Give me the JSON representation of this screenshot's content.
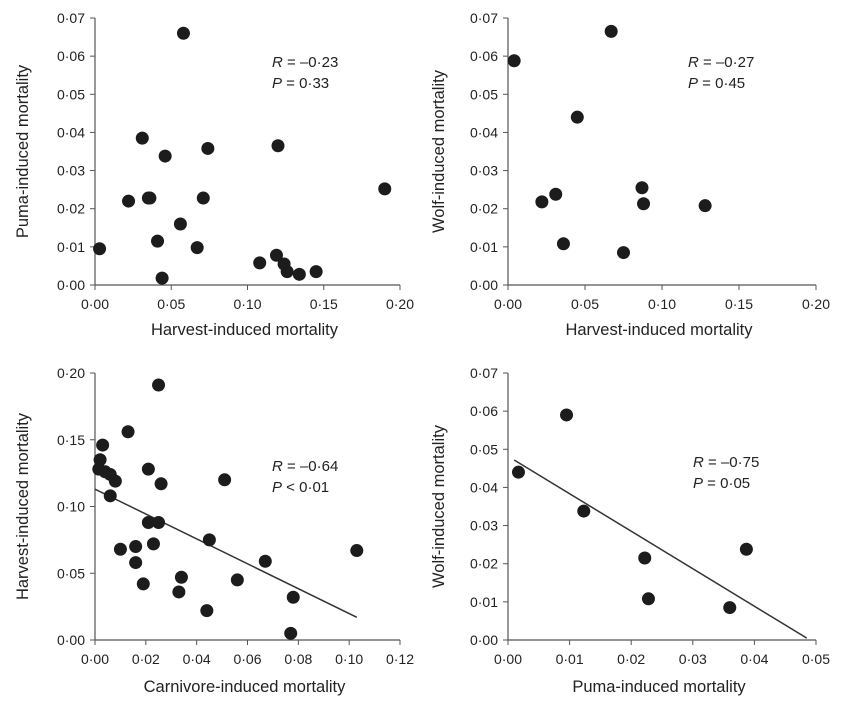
{
  "chart_data": [
    {
      "type": "scatter",
      "xlabel": "Harvest-induced mortality",
      "ylabel": "Puma-induced mortality",
      "xlim": [
        0,
        0.2
      ],
      "ylim": [
        0,
        0.07
      ],
      "x_ticks": [
        "0·00",
        "0·05",
        "0·10",
        "0·15",
        "0·20"
      ],
      "y_ticks": [
        "0·00",
        "0·01",
        "0·02",
        "0·03",
        "0·04",
        "0·05",
        "0·06",
        "0·07"
      ],
      "r_label": "R",
      "r_value": " = –0·23",
      "p_label": "P",
      "p_value": " = 0·33",
      "fit_line": null,
      "points": [
        {
          "x": 0.003,
          "y": 0.0095
        },
        {
          "x": 0.022,
          "y": 0.022
        },
        {
          "x": 0.031,
          "y": 0.0385
        },
        {
          "x": 0.035,
          "y": 0.0228
        },
        {
          "x": 0.036,
          "y": 0.0228
        },
        {
          "x": 0.041,
          "y": 0.0115
        },
        {
          "x": 0.044,
          "y": 0.0018
        },
        {
          "x": 0.046,
          "y": 0.0338
        },
        {
          "x": 0.056,
          "y": 0.016
        },
        {
          "x": 0.058,
          "y": 0.066
        },
        {
          "x": 0.067,
          "y": 0.0098
        },
        {
          "x": 0.071,
          "y": 0.0228
        },
        {
          "x": 0.074,
          "y": 0.0358
        },
        {
          "x": 0.108,
          "y": 0.0058
        },
        {
          "x": 0.119,
          "y": 0.0078
        },
        {
          "x": 0.12,
          "y": 0.0365
        },
        {
          "x": 0.124,
          "y": 0.0055
        },
        {
          "x": 0.126,
          "y": 0.0035
        },
        {
          "x": 0.134,
          "y": 0.0028
        },
        {
          "x": 0.145,
          "y": 0.0035
        },
        {
          "x": 0.19,
          "y": 0.0252
        }
      ]
    },
    {
      "type": "scatter",
      "xlabel": "Harvest-induced mortality",
      "ylabel": "Wolf-induced mortality",
      "xlim": [
        0,
        0.2
      ],
      "ylim": [
        0,
        0.07
      ],
      "x_ticks": [
        "0·00",
        "0·05",
        "0·10",
        "0·15",
        "0·20"
      ],
      "y_ticks": [
        "0·00",
        "0·01",
        "0·02",
        "0·03",
        "0·04",
        "0·05",
        "0·06",
        "0·07"
      ],
      "r_label": "R",
      "r_value": " = –0·27",
      "p_label": "P",
      "p_value": " = 0·45",
      "fit_line": null,
      "points": [
        {
          "x": 0.004,
          "y": 0.0588
        },
        {
          "x": 0.022,
          "y": 0.0218
        },
        {
          "x": 0.031,
          "y": 0.0238
        },
        {
          "x": 0.036,
          "y": 0.0108
        },
        {
          "x": 0.045,
          "y": 0.044
        },
        {
          "x": 0.067,
          "y": 0.0665
        },
        {
          "x": 0.075,
          "y": 0.0085
        },
        {
          "x": 0.087,
          "y": 0.0255
        },
        {
          "x": 0.088,
          "y": 0.0213
        },
        {
          "x": 0.128,
          "y": 0.0208
        }
      ]
    },
    {
      "type": "scatter",
      "xlabel": "Carnivore-induced mortality",
      "ylabel": "Harvest-induced mortality",
      "xlim": [
        0,
        0.12
      ],
      "ylim": [
        0,
        0.2
      ],
      "x_ticks": [
        "0·00",
        "0·02",
        "0·04",
        "0·06",
        "0·08",
        "0·10",
        "0·12"
      ],
      "y_ticks": [
        "0·00",
        "0·05",
        "0·10",
        "0·15",
        "0·20"
      ],
      "r_label": "R",
      "r_value": " = –0·64",
      "p_label": "P",
      "p_value": " < 0·01",
      "fit_line": {
        "x0": 0.0,
        "y0": 0.113,
        "x1": 0.103,
        "y1": 0.017
      },
      "points": [
        {
          "x": 0.0015,
          "y": 0.128
        },
        {
          "x": 0.002,
          "y": 0.135
        },
        {
          "x": 0.003,
          "y": 0.146
        },
        {
          "x": 0.004,
          "y": 0.126
        },
        {
          "x": 0.006,
          "y": 0.124
        },
        {
          "x": 0.006,
          "y": 0.108
        },
        {
          "x": 0.008,
          "y": 0.119
        },
        {
          "x": 0.01,
          "y": 0.068
        },
        {
          "x": 0.013,
          "y": 0.156
        },
        {
          "x": 0.016,
          "y": 0.07
        },
        {
          "x": 0.016,
          "y": 0.058
        },
        {
          "x": 0.019,
          "y": 0.042
        },
        {
          "x": 0.021,
          "y": 0.128
        },
        {
          "x": 0.021,
          "y": 0.088
        },
        {
          "x": 0.023,
          "y": 0.072
        },
        {
          "x": 0.025,
          "y": 0.088
        },
        {
          "x": 0.025,
          "y": 0.191
        },
        {
          "x": 0.026,
          "y": 0.117
        },
        {
          "x": 0.033,
          "y": 0.036
        },
        {
          "x": 0.034,
          "y": 0.047
        },
        {
          "x": 0.044,
          "y": 0.022
        },
        {
          "x": 0.045,
          "y": 0.075
        },
        {
          "x": 0.051,
          "y": 0.12
        },
        {
          "x": 0.056,
          "y": 0.045
        },
        {
          "x": 0.067,
          "y": 0.059
        },
        {
          "x": 0.077,
          "y": 0.005
        },
        {
          "x": 0.078,
          "y": 0.032
        },
        {
          "x": 0.103,
          "y": 0.067
        }
      ]
    },
    {
      "type": "scatter",
      "xlabel": "Puma-induced mortality",
      "ylabel": "Wolf-induced mortality",
      "xlim": [
        0,
        0.05
      ],
      "ylim": [
        0,
        0.07
      ],
      "x_ticks": [
        "0·00",
        "0·01",
        "0·02",
        "0·03",
        "0·04",
        "0·05"
      ],
      "y_ticks": [
        "0·00",
        "0·01",
        "0·02",
        "0·03",
        "0·04",
        "0·05",
        "0·06",
        "0·07"
      ],
      "r_label": "R",
      "r_value": " = –0·75",
      "p_label": "P",
      "p_value": " = 0·05",
      "fit_line": {
        "x0": 0.001,
        "y0": 0.0472,
        "x1": 0.0485,
        "y1": 0.0005
      },
      "points": [
        {
          "x": 0.0017,
          "y": 0.044
        },
        {
          "x": 0.0095,
          "y": 0.059
        },
        {
          "x": 0.0123,
          "y": 0.0338
        },
        {
          "x": 0.0222,
          "y": 0.0215
        },
        {
          "x": 0.0228,
          "y": 0.0108
        },
        {
          "x": 0.036,
          "y": 0.0085
        },
        {
          "x": 0.0387,
          "y": 0.0238
        }
      ]
    }
  ]
}
